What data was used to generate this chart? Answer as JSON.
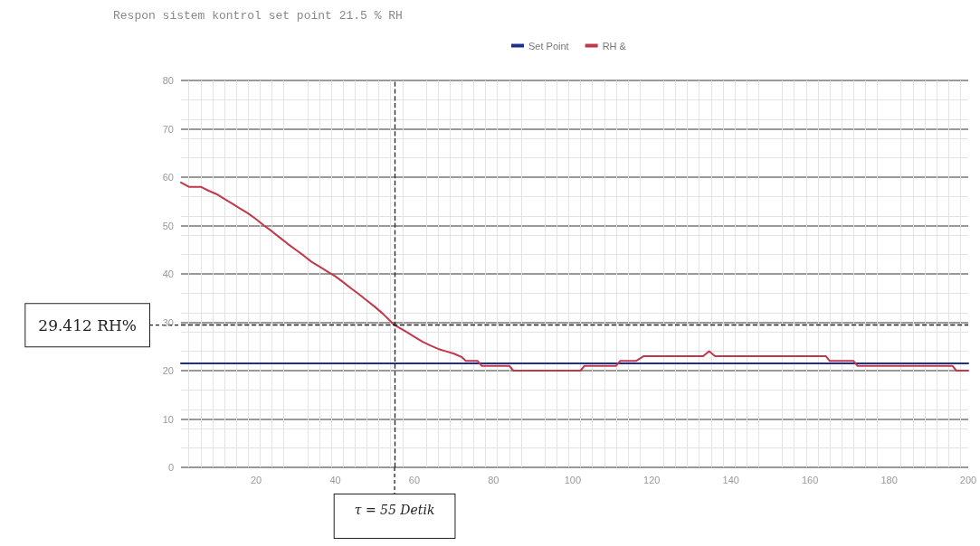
{
  "chart_data": {
    "type": "line",
    "title": "Respon sistem kontrol set point 21.5 % RH",
    "xlim": [
      1,
      200
    ],
    "xticks": [
      20,
      40,
      60,
      80,
      100,
      120,
      140,
      160,
      180,
      200
    ],
    "ylim": [
      0,
      80
    ],
    "yticks": [
      0,
      10,
      20,
      30,
      40,
      50,
      60,
      70,
      80
    ],
    "grid": true,
    "legend": "top",
    "marker": "none",
    "line_style": "solid",
    "series": [
      {
        "name": "Set Point",
        "color": "#1f2f8a",
        "x": [
          1,
          200
        ],
        "values": [
          21.5,
          21.5
        ]
      },
      {
        "name": "RH &",
        "color": "#c0394b",
        "x": [
          1,
          3,
          6,
          8,
          10,
          12,
          14,
          16,
          18,
          20,
          22,
          24,
          26,
          28,
          30,
          32,
          34,
          36,
          38,
          40,
          42,
          44,
          46,
          48,
          50,
          52,
          55,
          58,
          60,
          62,
          64,
          66,
          68,
          70,
          72,
          73,
          76,
          77,
          84,
          85,
          102,
          103,
          111,
          112,
          116,
          118,
          133,
          134.5,
          136,
          164,
          165,
          171,
          172,
          196,
          197,
          200
        ],
        "values": [
          58.9,
          58,
          58,
          57.2,
          56.5,
          55.5,
          54.5,
          53.5,
          52.5,
          51.3,
          50,
          48.8,
          47.5,
          46.2,
          45,
          43.8,
          42.5,
          41.5,
          40.5,
          39.5,
          38.3,
          37,
          35.8,
          34.5,
          33.2,
          31.8,
          29.4,
          28,
          27,
          26,
          25.2,
          24.5,
          24,
          23.5,
          22.8,
          22,
          22,
          21,
          21,
          20,
          20,
          21,
          21,
          22,
          22,
          23,
          23,
          24,
          23,
          23,
          22,
          22,
          21,
          21,
          20,
          20
        ]
      }
    ],
    "ref_lines": [
      {
        "axis": "y",
        "value": 29.412,
        "label": "29.412 RH%",
        "color": "#222222",
        "line_style": "dashed"
      },
      {
        "axis": "x",
        "value": 55,
        "label": "τ = 55 Detik",
        "color": "#222222",
        "line_style": "dashed"
      }
    ]
  }
}
